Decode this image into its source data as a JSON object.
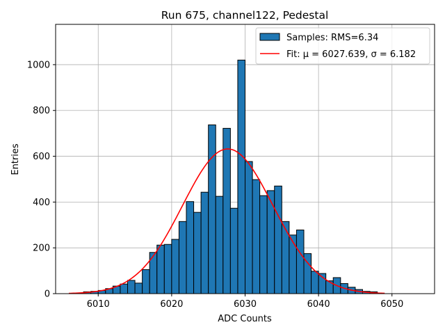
{
  "chart_data": {
    "type": "bar",
    "title": "Run 675, channel122, Pedestal",
    "xlabel": "ADC Counts",
    "ylabel": "Entries",
    "xlim": [
      6004.2,
      6055.8
    ],
    "ylim": [
      0,
      1176
    ],
    "x_ticks": [
      6010,
      6020,
      6030,
      6040,
      6050
    ],
    "y_ticks": [
      0,
      200,
      400,
      600,
      800,
      1000
    ],
    "grid": true,
    "bin_width": 1,
    "bin_start": 6008,
    "histogram_counts": [
      8,
      10,
      14,
      22,
      33,
      42,
      58,
      46,
      105,
      180,
      212,
      215,
      237,
      315,
      402,
      355,
      443,
      737,
      425,
      722,
      373,
      1020,
      577,
      498,
      428,
      450,
      470,
      315,
      256,
      278,
      175,
      98,
      88,
      56,
      70,
      44,
      28,
      18,
      10,
      8
    ],
    "bar_color": "#1f77b4",
    "fit": {
      "label": "Fit: μ = 6027.639, σ = 6.182",
      "mu": 6027.639,
      "sigma": 6.182,
      "peak": 632,
      "x_range": [
        6006,
        6049
      ],
      "color": "#ff0000"
    },
    "legend": {
      "position": "top-right",
      "entries": [
        {
          "label": "Samples: RMS=6.34",
          "color": "#1f77b4",
          "kind": "patch"
        },
        {
          "label": "Fit: μ = 6027.639, σ = 6.182",
          "color": "#ff0000",
          "kind": "line"
        }
      ]
    }
  }
}
